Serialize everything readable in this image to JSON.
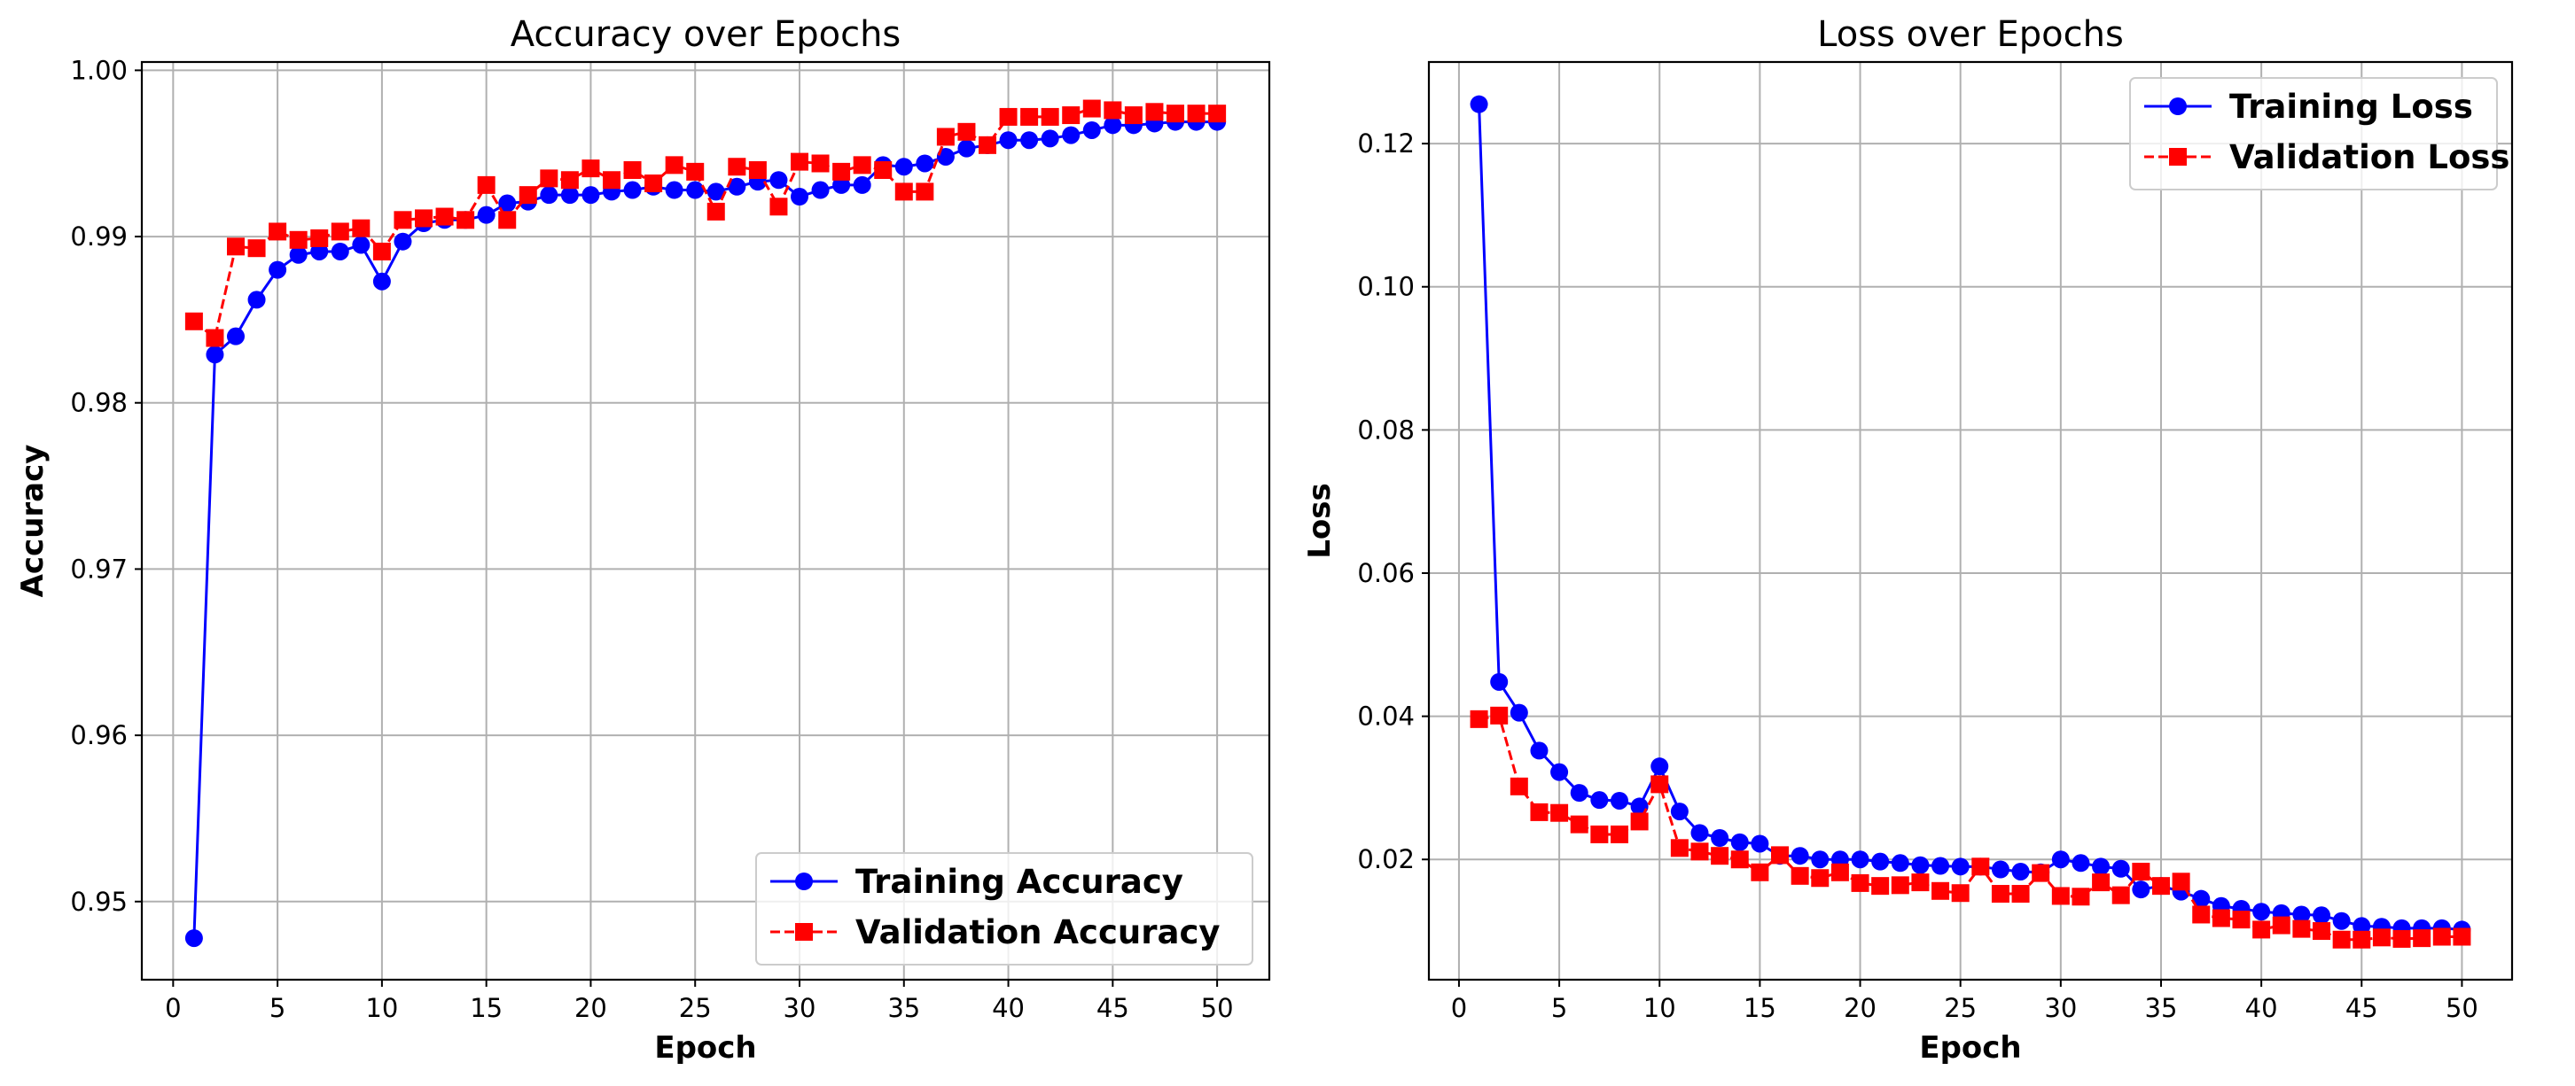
{
  "chart_data": [
    {
      "type": "line",
      "title": "Accuracy over Epochs",
      "xlabel": "Epoch",
      "ylabel": "Accuracy",
      "xlim": [
        -1.5,
        52.5
      ],
      "ylim": [
        0.9453,
        1.0005
      ],
      "xticks": [
        0,
        5,
        10,
        15,
        20,
        25,
        30,
        35,
        40,
        45,
        50
      ],
      "xtick_labels": [
        "0",
        "5",
        "10",
        "15",
        "20",
        "25",
        "30",
        "35",
        "40",
        "45",
        "50"
      ],
      "yticks": [
        0.95,
        0.96,
        0.97,
        0.98,
        0.99,
        1.0
      ],
      "ytick_labels": [
        "0.95",
        "0.96",
        "0.97",
        "0.98",
        "0.99",
        "1.00"
      ],
      "grid": true,
      "legend_position": "lower-right",
      "x": [
        1,
        2,
        3,
        4,
        5,
        6,
        7,
        8,
        9,
        10,
        11,
        12,
        13,
        14,
        15,
        16,
        17,
        18,
        19,
        20,
        21,
        22,
        23,
        24,
        25,
        26,
        27,
        28,
        29,
        30,
        31,
        32,
        33,
        34,
        35,
        36,
        37,
        38,
        39,
        40,
        41,
        42,
        43,
        44,
        45,
        46,
        47,
        48,
        49,
        50
      ],
      "series": [
        {
          "name": "Training Accuracy",
          "color": "#0000ff",
          "marker": "circle",
          "linestyle": "solid",
          "values": [
            0.9478,
            0.9829,
            0.984,
            0.9862,
            0.988,
            0.9889,
            0.9891,
            0.9891,
            0.9895,
            0.9873,
            0.9897,
            0.9908,
            0.991,
            0.991,
            0.9913,
            0.992,
            0.9921,
            0.9925,
            0.9925,
            0.9925,
            0.9927,
            0.9928,
            0.993,
            0.9928,
            0.9928,
            0.9927,
            0.993,
            0.9933,
            0.9934,
            0.9924,
            0.9928,
            0.9931,
            0.9931,
            0.9943,
            0.9942,
            0.9944,
            0.9948,
            0.9953,
            0.9955,
            0.9958,
            0.9958,
            0.9959,
            0.9961,
            0.9964,
            0.9967,
            0.9967,
            0.9968,
            0.9969,
            0.9969,
            0.9969
          ]
        },
        {
          "name": "Validation Accuracy",
          "color": "#ff0000",
          "marker": "square",
          "linestyle": "dashed",
          "values": [
            0.9849,
            0.9839,
            0.9894,
            0.9893,
            0.9903,
            0.9898,
            0.9899,
            0.9903,
            0.9905,
            0.9891,
            0.991,
            0.9911,
            0.9912,
            0.991,
            0.9931,
            0.991,
            0.9925,
            0.9935,
            0.9934,
            0.9941,
            0.9934,
            0.994,
            0.9932,
            0.9943,
            0.9939,
            0.9915,
            0.9942,
            0.994,
            0.9918,
            0.9945,
            0.9944,
            0.9939,
            0.9943,
            0.994,
            0.9927,
            0.9927,
            0.996,
            0.9963,
            0.9955,
            0.9972,
            0.9972,
            0.9972,
            0.9973,
            0.9977,
            0.9976,
            0.9973,
            0.9975,
            0.9974,
            0.9974,
            0.9974
          ]
        }
      ]
    },
    {
      "type": "line",
      "title": "Loss over Epochs",
      "xlabel": "Epoch",
      "ylabel": "Loss",
      "xlim": [
        -1.5,
        52.5
      ],
      "ylim": [
        0.0032,
        0.1314
      ],
      "xticks": [
        0,
        5,
        10,
        15,
        20,
        25,
        30,
        35,
        40,
        45,
        50
      ],
      "xtick_labels": [
        "0",
        "5",
        "10",
        "15",
        "20",
        "25",
        "30",
        "35",
        "40",
        "45",
        "50"
      ],
      "yticks": [
        0.02,
        0.04,
        0.06,
        0.08,
        0.1,
        0.12
      ],
      "ytick_labels": [
        "0.02",
        "0.04",
        "0.06",
        "0.08",
        "0.10",
        "0.12"
      ],
      "grid": true,
      "legend_position": "upper-right",
      "x": [
        1,
        2,
        3,
        4,
        5,
        6,
        7,
        8,
        9,
        10,
        11,
        12,
        13,
        14,
        15,
        16,
        17,
        18,
        19,
        20,
        21,
        22,
        23,
        24,
        25,
        26,
        27,
        28,
        29,
        30,
        31,
        32,
        33,
        34,
        35,
        36,
        37,
        38,
        39,
        40,
        41,
        42,
        43,
        44,
        45,
        46,
        47,
        48,
        49,
        50
      ],
      "series": [
        {
          "name": "Training Loss",
          "color": "#0000ff",
          "marker": "circle",
          "linestyle": "solid",
          "values": [
            0.1255,
            0.0448,
            0.0405,
            0.0352,
            0.0322,
            0.0293,
            0.0283,
            0.0282,
            0.0274,
            0.033,
            0.0267,
            0.0237,
            0.023,
            0.0224,
            0.0222,
            0.0205,
            0.0205,
            0.02,
            0.02,
            0.02,
            0.0197,
            0.0195,
            0.0192,
            0.0191,
            0.019,
            0.019,
            0.0186,
            0.0183,
            0.0182,
            0.02,
            0.0195,
            0.019,
            0.0187,
            0.0158,
            0.0163,
            0.0155,
            0.0145,
            0.0135,
            0.0131,
            0.0127,
            0.0125,
            0.0123,
            0.0122,
            0.0114,
            0.0107,
            0.0106,
            0.0104,
            0.0104,
            0.0104,
            0.0102
          ]
        },
        {
          "name": "Validation Loss",
          "color": "#ff0000",
          "marker": "square",
          "linestyle": "dashed",
          "values": [
            0.0396,
            0.0401,
            0.0302,
            0.0266,
            0.0265,
            0.0249,
            0.0235,
            0.0235,
            0.0253,
            0.0305,
            0.0216,
            0.0211,
            0.0205,
            0.02,
            0.0182,
            0.0206,
            0.0177,
            0.0174,
            0.0182,
            0.0167,
            0.0163,
            0.0164,
            0.0168,
            0.0156,
            0.0153,
            0.019,
            0.0152,
            0.0152,
            0.0181,
            0.0149,
            0.0148,
            0.0168,
            0.015,
            0.0183,
            0.0163,
            0.0169,
            0.0123,
            0.0118,
            0.0116,
            0.0102,
            0.0108,
            0.0103,
            0.01,
            0.0088,
            0.0088,
            0.0091,
            0.0089,
            0.009,
            0.0092,
            0.0092
          ]
        }
      ]
    }
  ]
}
